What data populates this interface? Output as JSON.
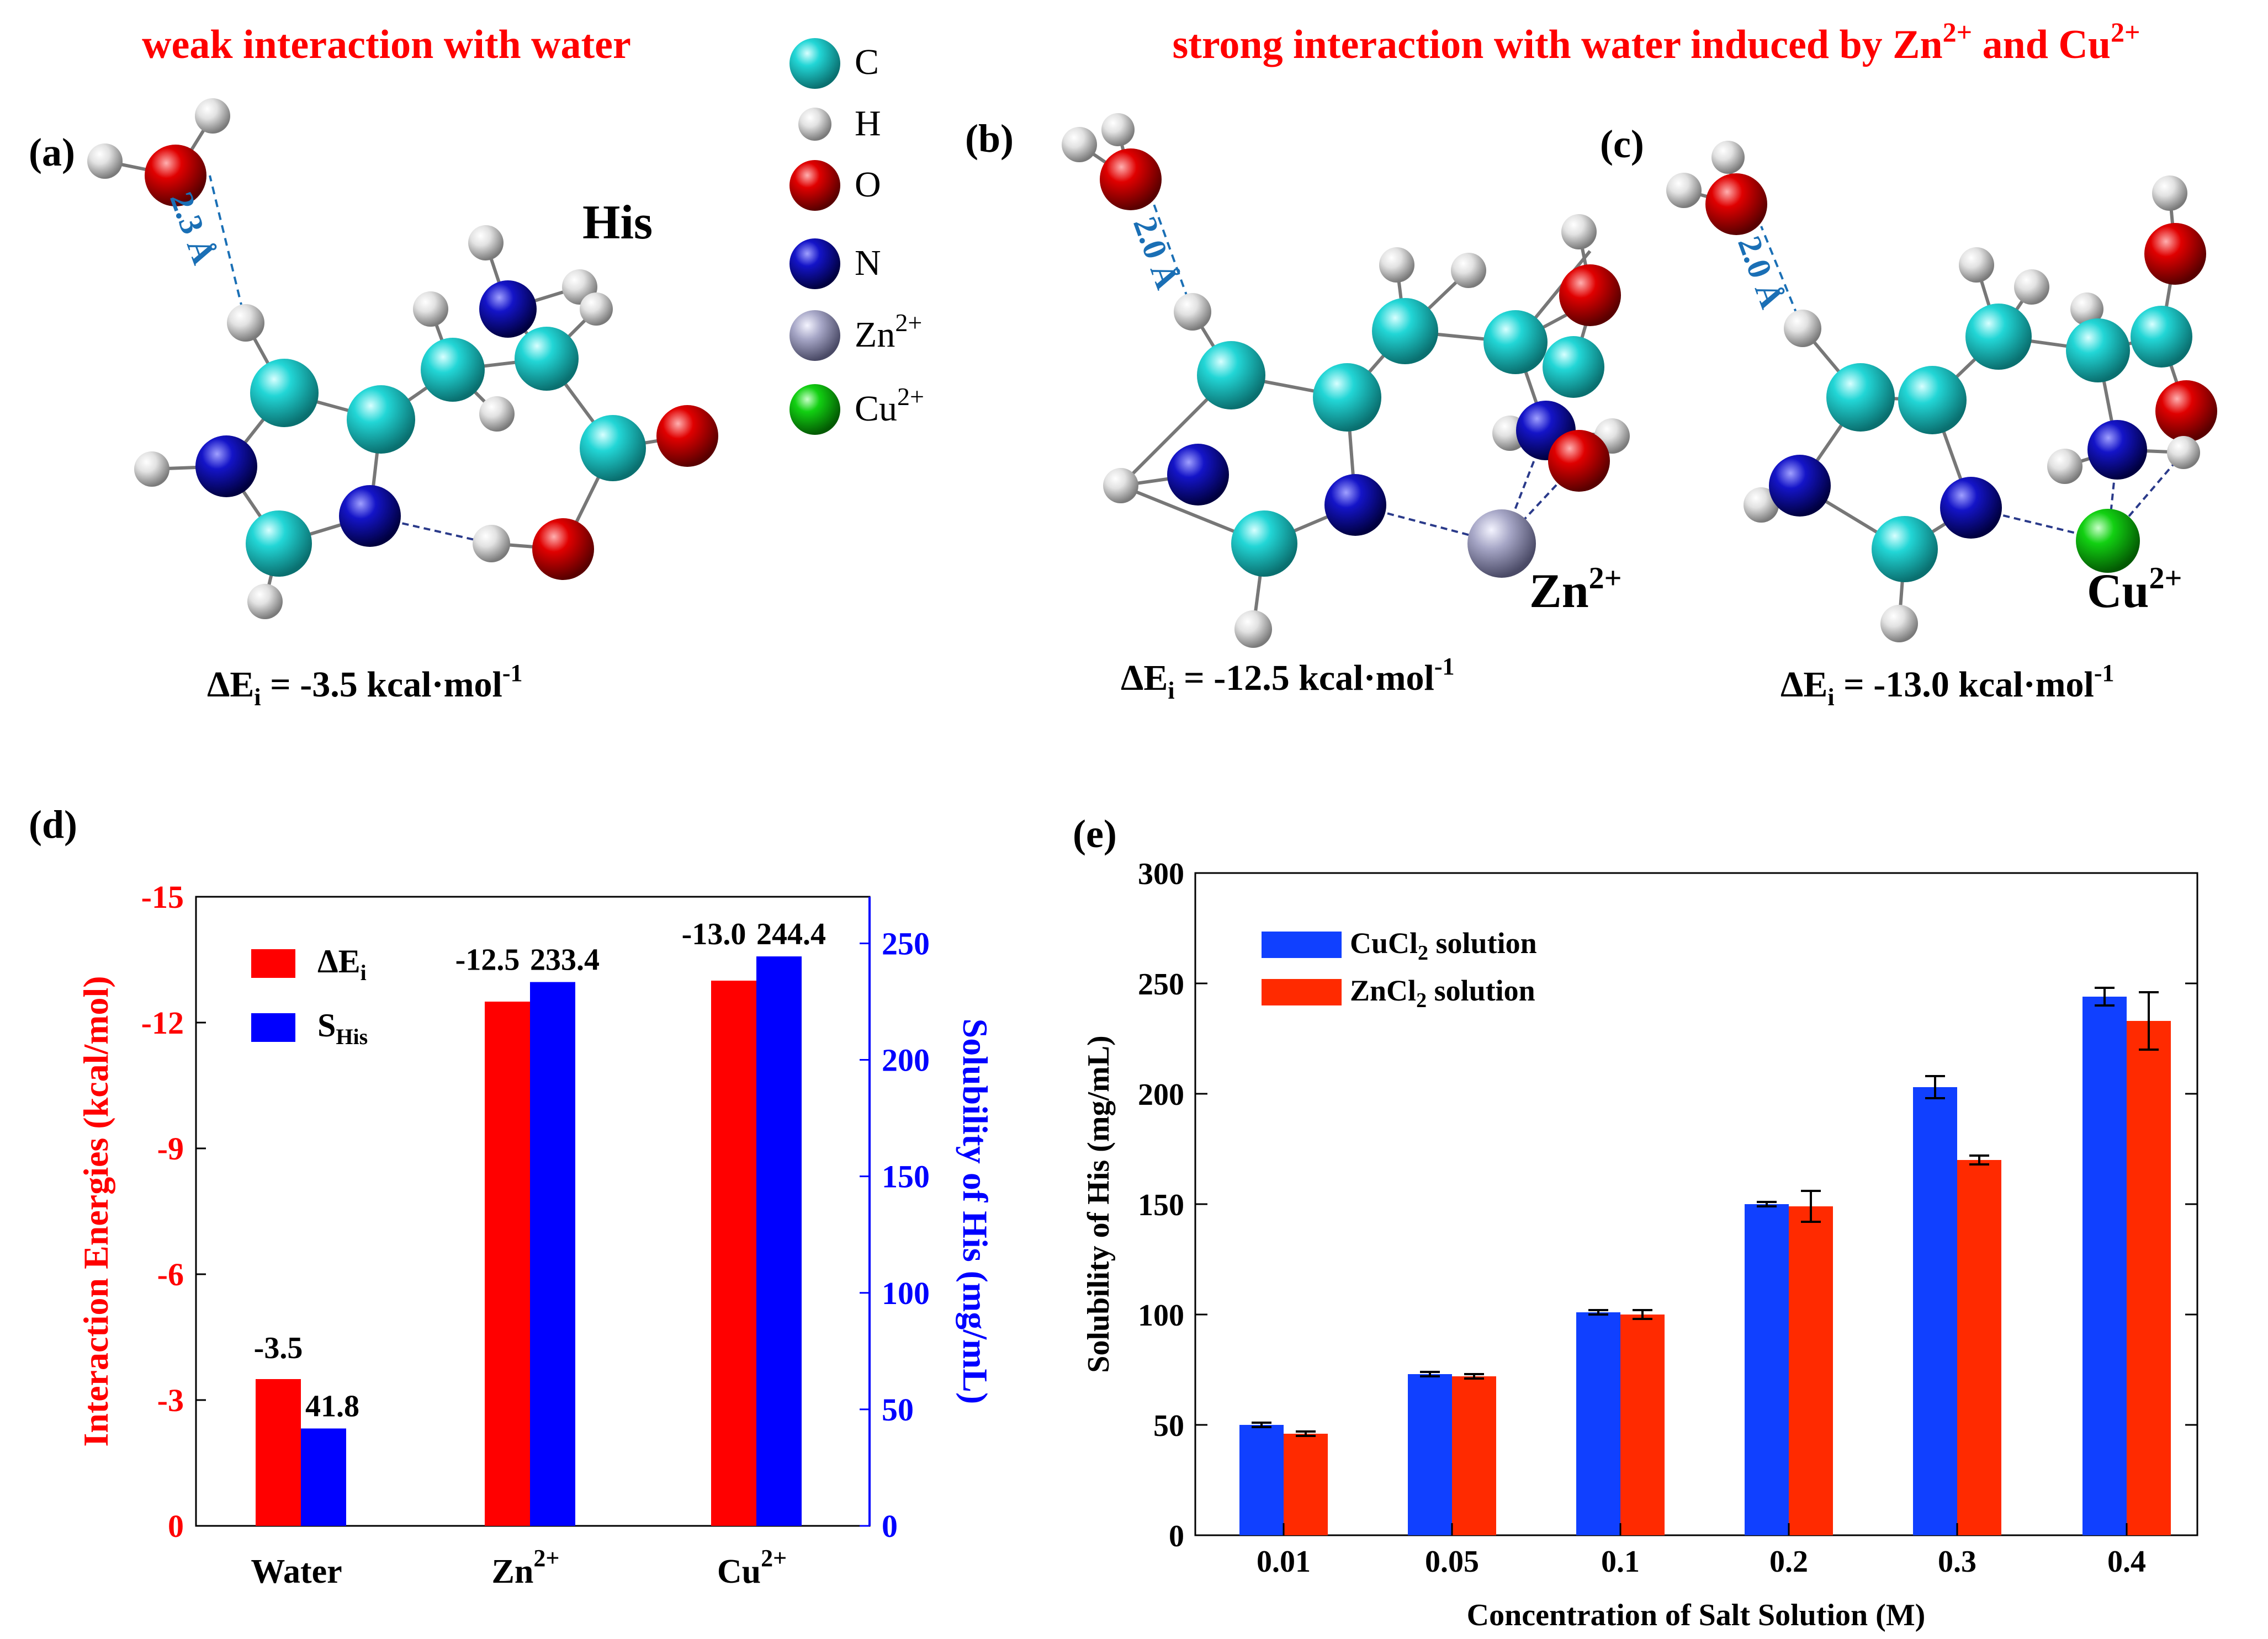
{
  "headings": {
    "weak": "weak interaction with water",
    "strong": "strong interaction with water induced by Zn",
    "strong_sup1": "2+",
    "strong_mid": " and Cu",
    "strong_sup2": "2+"
  },
  "panels": {
    "a": "(a)",
    "b": "(b)",
    "c": "(c)",
    "d": "(d)",
    "e": "(e)"
  },
  "molecule_labels": {
    "his": "His",
    "zn": "Zn",
    "zn_sup": "2+",
    "cu": "Cu",
    "cu_sup": "2+",
    "dist_a": "2.3 Å",
    "dist_b": "2.0 Å",
    "dist_c": "2.0 Å"
  },
  "energies": {
    "prefix": "ΔE",
    "sub": "i",
    "a": " = -3.5 kcal·mol",
    "b": " = -12.5 kcal·mol",
    "c": " = -13.0 kcal·mol",
    "sup": "-1"
  },
  "atom_legend": [
    {
      "label": "C",
      "sup": "",
      "color": "#22d6d6"
    },
    {
      "label": "H",
      "sup": "",
      "color": "#e6e6e6"
    },
    {
      "label": "O",
      "sup": "",
      "color": "#d90000"
    },
    {
      "label": "N",
      "sup": "",
      "color": "#1010b0"
    },
    {
      "label": "Zn",
      "sup": "2+",
      "color": "#9a9ab8"
    },
    {
      "label": "Cu",
      "sup": "2+",
      "color": "#10c010"
    }
  ],
  "colors": {
    "heading": "#ff0000",
    "red_series": "#ff0000",
    "blue_series": "#0000ff",
    "bar_blue_e": "#1040ff",
    "bar_red_e": "#ff2a00",
    "dist": "#1a6fb5"
  },
  "chart_data": [
    {
      "type": "bar",
      "categories": [
        "Water",
        "Zn",
        "Cu"
      ],
      "category_sups": [
        "",
        "2+",
        "2+"
      ],
      "series": [
        {
          "name": "ΔE",
          "name_sub": "i",
          "values": [
            -3.5,
            -12.5,
            -13.0
          ],
          "axis": "left"
        },
        {
          "name": "S",
          "name_sub": "His",
          "values": [
            41.8,
            233.4,
            244.4
          ],
          "axis": "right"
        }
      ],
      "value_labels_left": [
        "-3.5",
        "-12.5",
        "-13.0"
      ],
      "value_labels_right": [
        "41.8",
        "233.4",
        "244.4"
      ],
      "ylabel": "Interaction Energies (kcal/mol)",
      "ylabel_right": "Solubility of His (mg/mL)",
      "ylim": [
        0,
        -15
      ],
      "ylim_right": [
        0,
        270
      ],
      "yticks": [
        0,
        -3,
        -6,
        -9,
        -12,
        -15
      ],
      "yticks_right": [
        0,
        50,
        100,
        150,
        200,
        250
      ],
      "legend_position": "top-left",
      "grid": false
    },
    {
      "type": "bar",
      "categories": [
        "0.01",
        "0.05",
        "0.1",
        "0.2",
        "0.3",
        "0.4"
      ],
      "series": [
        {
          "name": "CuCl",
          "name_sub": "2",
          "name_rest": " solution",
          "values": [
            50,
            73,
            101,
            150,
            203,
            244
          ],
          "errors": [
            1,
            1,
            1,
            1,
            5,
            4
          ]
        },
        {
          "name": "ZnCl",
          "name_sub": "2",
          "name_rest": " solution",
          "values": [
            46,
            72,
            100,
            149,
            170,
            233
          ],
          "errors": [
            1,
            1,
            2,
            7,
            2,
            13
          ]
        }
      ],
      "xlabel": "Concentration of Salt Solution (M)",
      "ylabel": "Solubility of His (mg/mL)",
      "ylim": [
        0,
        300
      ],
      "yticks": [
        0,
        50,
        100,
        150,
        200,
        250,
        300
      ],
      "legend_position": "top-left",
      "grid": false
    }
  ]
}
